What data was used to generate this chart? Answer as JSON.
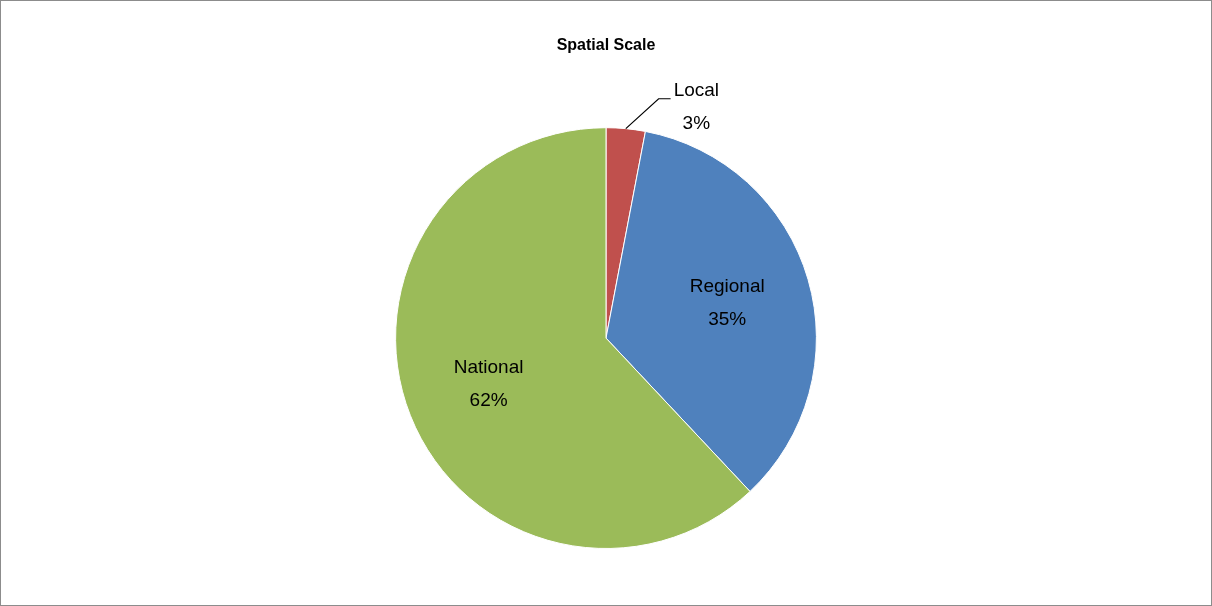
{
  "chart_data": {
    "type": "pie",
    "title": "Spatial Scale",
    "categories": [
      "Local",
      "Regional",
      "National"
    ],
    "values": [
      3,
      35,
      62
    ],
    "colors": [
      "#c0504d",
      "#4f81bd",
      "#9bbb59"
    ],
    "value_labels": [
      "3%",
      "35%",
      "62%"
    ],
    "legend": false
  }
}
